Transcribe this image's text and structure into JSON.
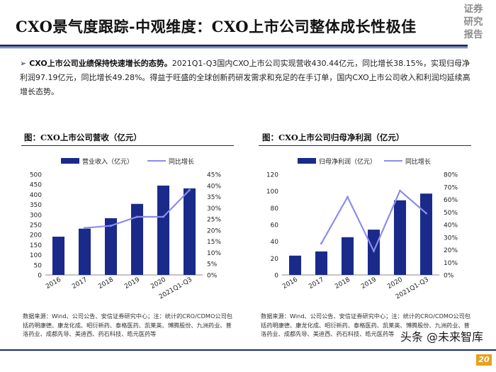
{
  "header": {
    "title": "CXO景气度跟踪-中观维度：CXO上市公司整体成长性极佳",
    "stamp": [
      "证券",
      "研究",
      "报告"
    ]
  },
  "summary": {
    "bold_lead": "CXO上市公司业绩保持快速增长的态势。",
    "text": "2021Q1-Q3国内CXO上市公司实现营收430.44亿元，同比增长38.15%，实现归母净利润97.19亿元，同比增长49.28%。得益于旺盛的全球创新药研发需求和充足的在手订单，国内CXO上市公司收入和利润均延续高增长态势。"
  },
  "chart_data": [
    {
      "type": "bar",
      "title": "图：CXO上市公司营收（亿元）",
      "categories": [
        "2016",
        "2017",
        "2018",
        "2019",
        "2020",
        "2021Q1-Q3"
      ],
      "series": [
        {
          "name": "营业收入（亿元）",
          "type": "bar",
          "axis": "left",
          "values": [
            190,
            230,
            282,
            353,
            444,
            430
          ]
        },
        {
          "name": "同比增长",
          "type": "line",
          "axis": "right",
          "values": [
            null,
            21,
            22,
            26,
            26,
            38
          ]
        }
      ],
      "ylim": [
        0,
        500
      ],
      "yticks": [
        "0",
        "50",
        "100",
        "150",
        "200",
        "250",
        "300",
        "350",
        "400",
        "450",
        "500"
      ],
      "y2lim": [
        0,
        45
      ],
      "y2ticks": [
        "0%",
        "5%",
        "10%",
        "15%",
        "20%",
        "25%",
        "30%",
        "35%",
        "40%",
        "45%"
      ],
      "source": "数据来源：Wind、公司公告、安信证券研究中心；注：统计的CRO/CDMO公司包括药明康德、康龙化成、昭衍新药、泰格医药、凯莱英、博腾股份、九洲药业、普洛药业、成都先导、美迪西、药石科技、皓元医药等"
    },
    {
      "type": "bar",
      "title": "图：CXO上市公司归母净利润（亿元）",
      "categories": [
        "2016",
        "2017",
        "2018",
        "2019",
        "2020",
        "2021Q1-Q3"
      ],
      "series": [
        {
          "name": "归母净利润（亿元）",
          "type": "bar",
          "axis": "left",
          "values": [
            23,
            28,
            45,
            54,
            89,
            97
          ]
        },
        {
          "name": "同比增长",
          "type": "line",
          "axis": "right",
          "values": [
            null,
            25,
            62,
            19,
            67,
            49
          ]
        }
      ],
      "ylim": [
        0,
        120
      ],
      "yticks": [
        "0",
        "20",
        "40",
        "60",
        "80",
        "100",
        "120"
      ],
      "y2lim": [
        0,
        80
      ],
      "y2ticks": [
        "0%",
        "10%",
        "20%",
        "30%",
        "40%",
        "50%",
        "60%",
        "70%",
        "80%"
      ],
      "source": "数据来源：Wind、公司公告、安信证券研究中心；注：统计的CRO/CDMO公司包括药明康德、康龙化成、昭衍新药、泰格医药、凯莱英、博腾股份、九洲药业、普洛药业、成都先导、美迪西、药石科技、皓元医药等"
    }
  ],
  "colors": {
    "bar": "#1a2a8a",
    "line": "#8c8cec",
    "rule": "#1b2a72",
    "page_badge": "#e8a020"
  },
  "footer": {
    "watermark": "头条 @未来智库",
    "page_number": "20"
  }
}
